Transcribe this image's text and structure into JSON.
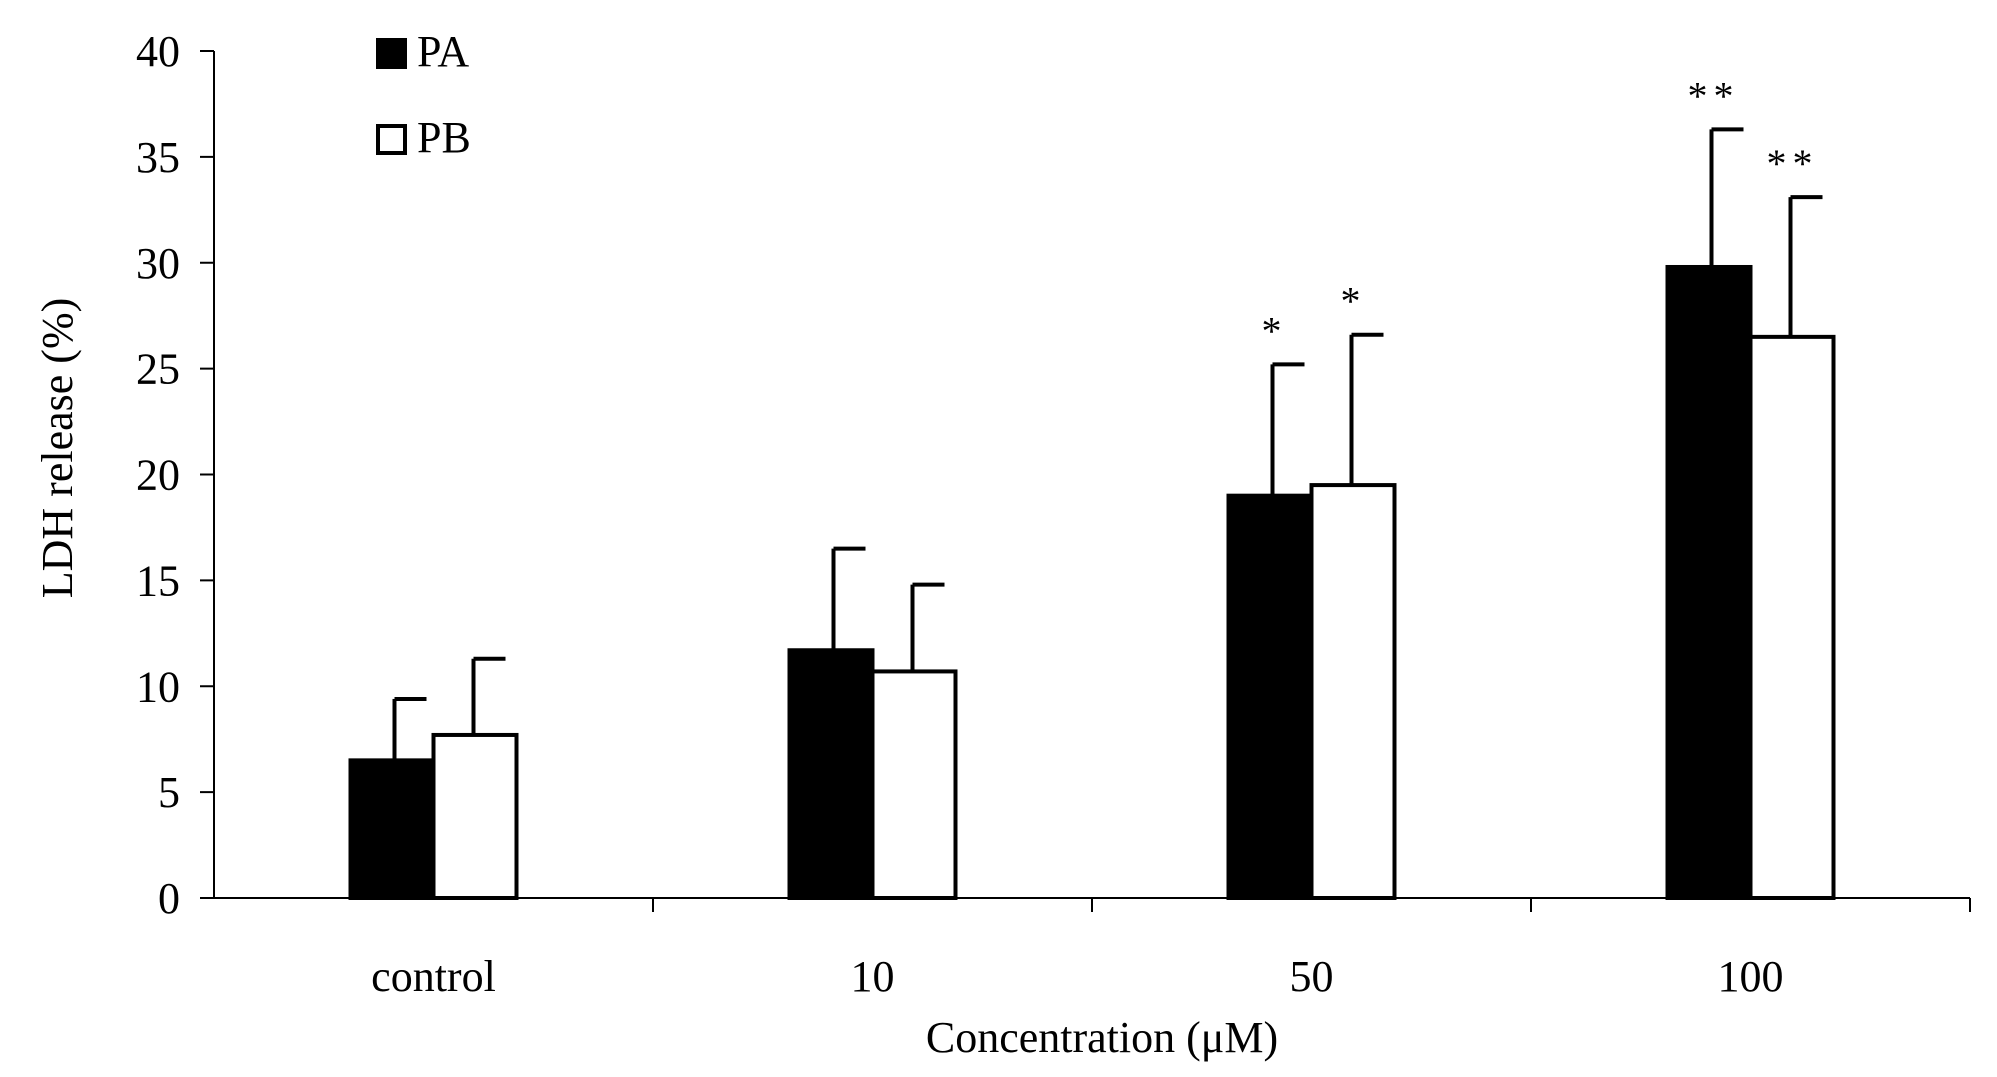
{
  "chart_data": {
    "type": "bar",
    "title": "",
    "xlabel": "Concentration (μM)",
    "ylabel": "LDH release (%)",
    "ylim": [
      0,
      40
    ],
    "yticks": [
      "0",
      "5",
      "10",
      "15",
      "20",
      "25",
      "30",
      "35",
      "40"
    ],
    "categories": [
      "control",
      "10",
      "50",
      "100"
    ],
    "legend_position": "top-left",
    "grid": false,
    "series": [
      {
        "name": "PA",
        "fill": "#000000",
        "values": [
          6.5,
          11.7,
          19.0,
          29.8
        ],
        "errors": [
          2.9,
          4.8,
          6.2,
          6.5
        ],
        "significance": [
          "",
          "",
          "*",
          "**"
        ]
      },
      {
        "name": "PB",
        "fill": "#ffffff",
        "values": [
          7.7,
          10.7,
          19.5,
          26.5
        ],
        "errors": [
          3.6,
          4.1,
          7.1,
          6.6
        ],
        "significance": [
          "",
          "",
          "*",
          "**"
        ]
      }
    ]
  }
}
